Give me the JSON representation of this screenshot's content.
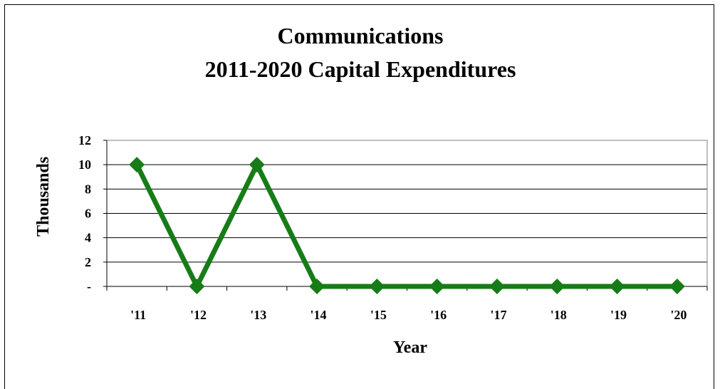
{
  "chart_data": {
    "type": "line",
    "title_lines": [
      "Communications",
      "2011-2020 Capital Expenditures"
    ],
    "xlabel": "Year",
    "ylabel": "Thousands",
    "categories": [
      "'11",
      "'12",
      "'13",
      "'14",
      "'15",
      "'16",
      "'17",
      "'18",
      "'19",
      "'20"
    ],
    "series": [
      {
        "values": [
          10,
          0,
          10,
          0,
          0,
          0,
          0,
          0,
          0,
          0
        ]
      }
    ],
    "ylim": [
      0,
      12
    ],
    "yticks": [
      0,
      2,
      4,
      6,
      8,
      10,
      12
    ],
    "ytick_labels": [
      "-",
      "2",
      "4",
      "6",
      "8",
      "10",
      "12"
    ],
    "grid": true,
    "legend": "none",
    "colors": {
      "line": "#177c17",
      "grid": "#000000"
    }
  }
}
